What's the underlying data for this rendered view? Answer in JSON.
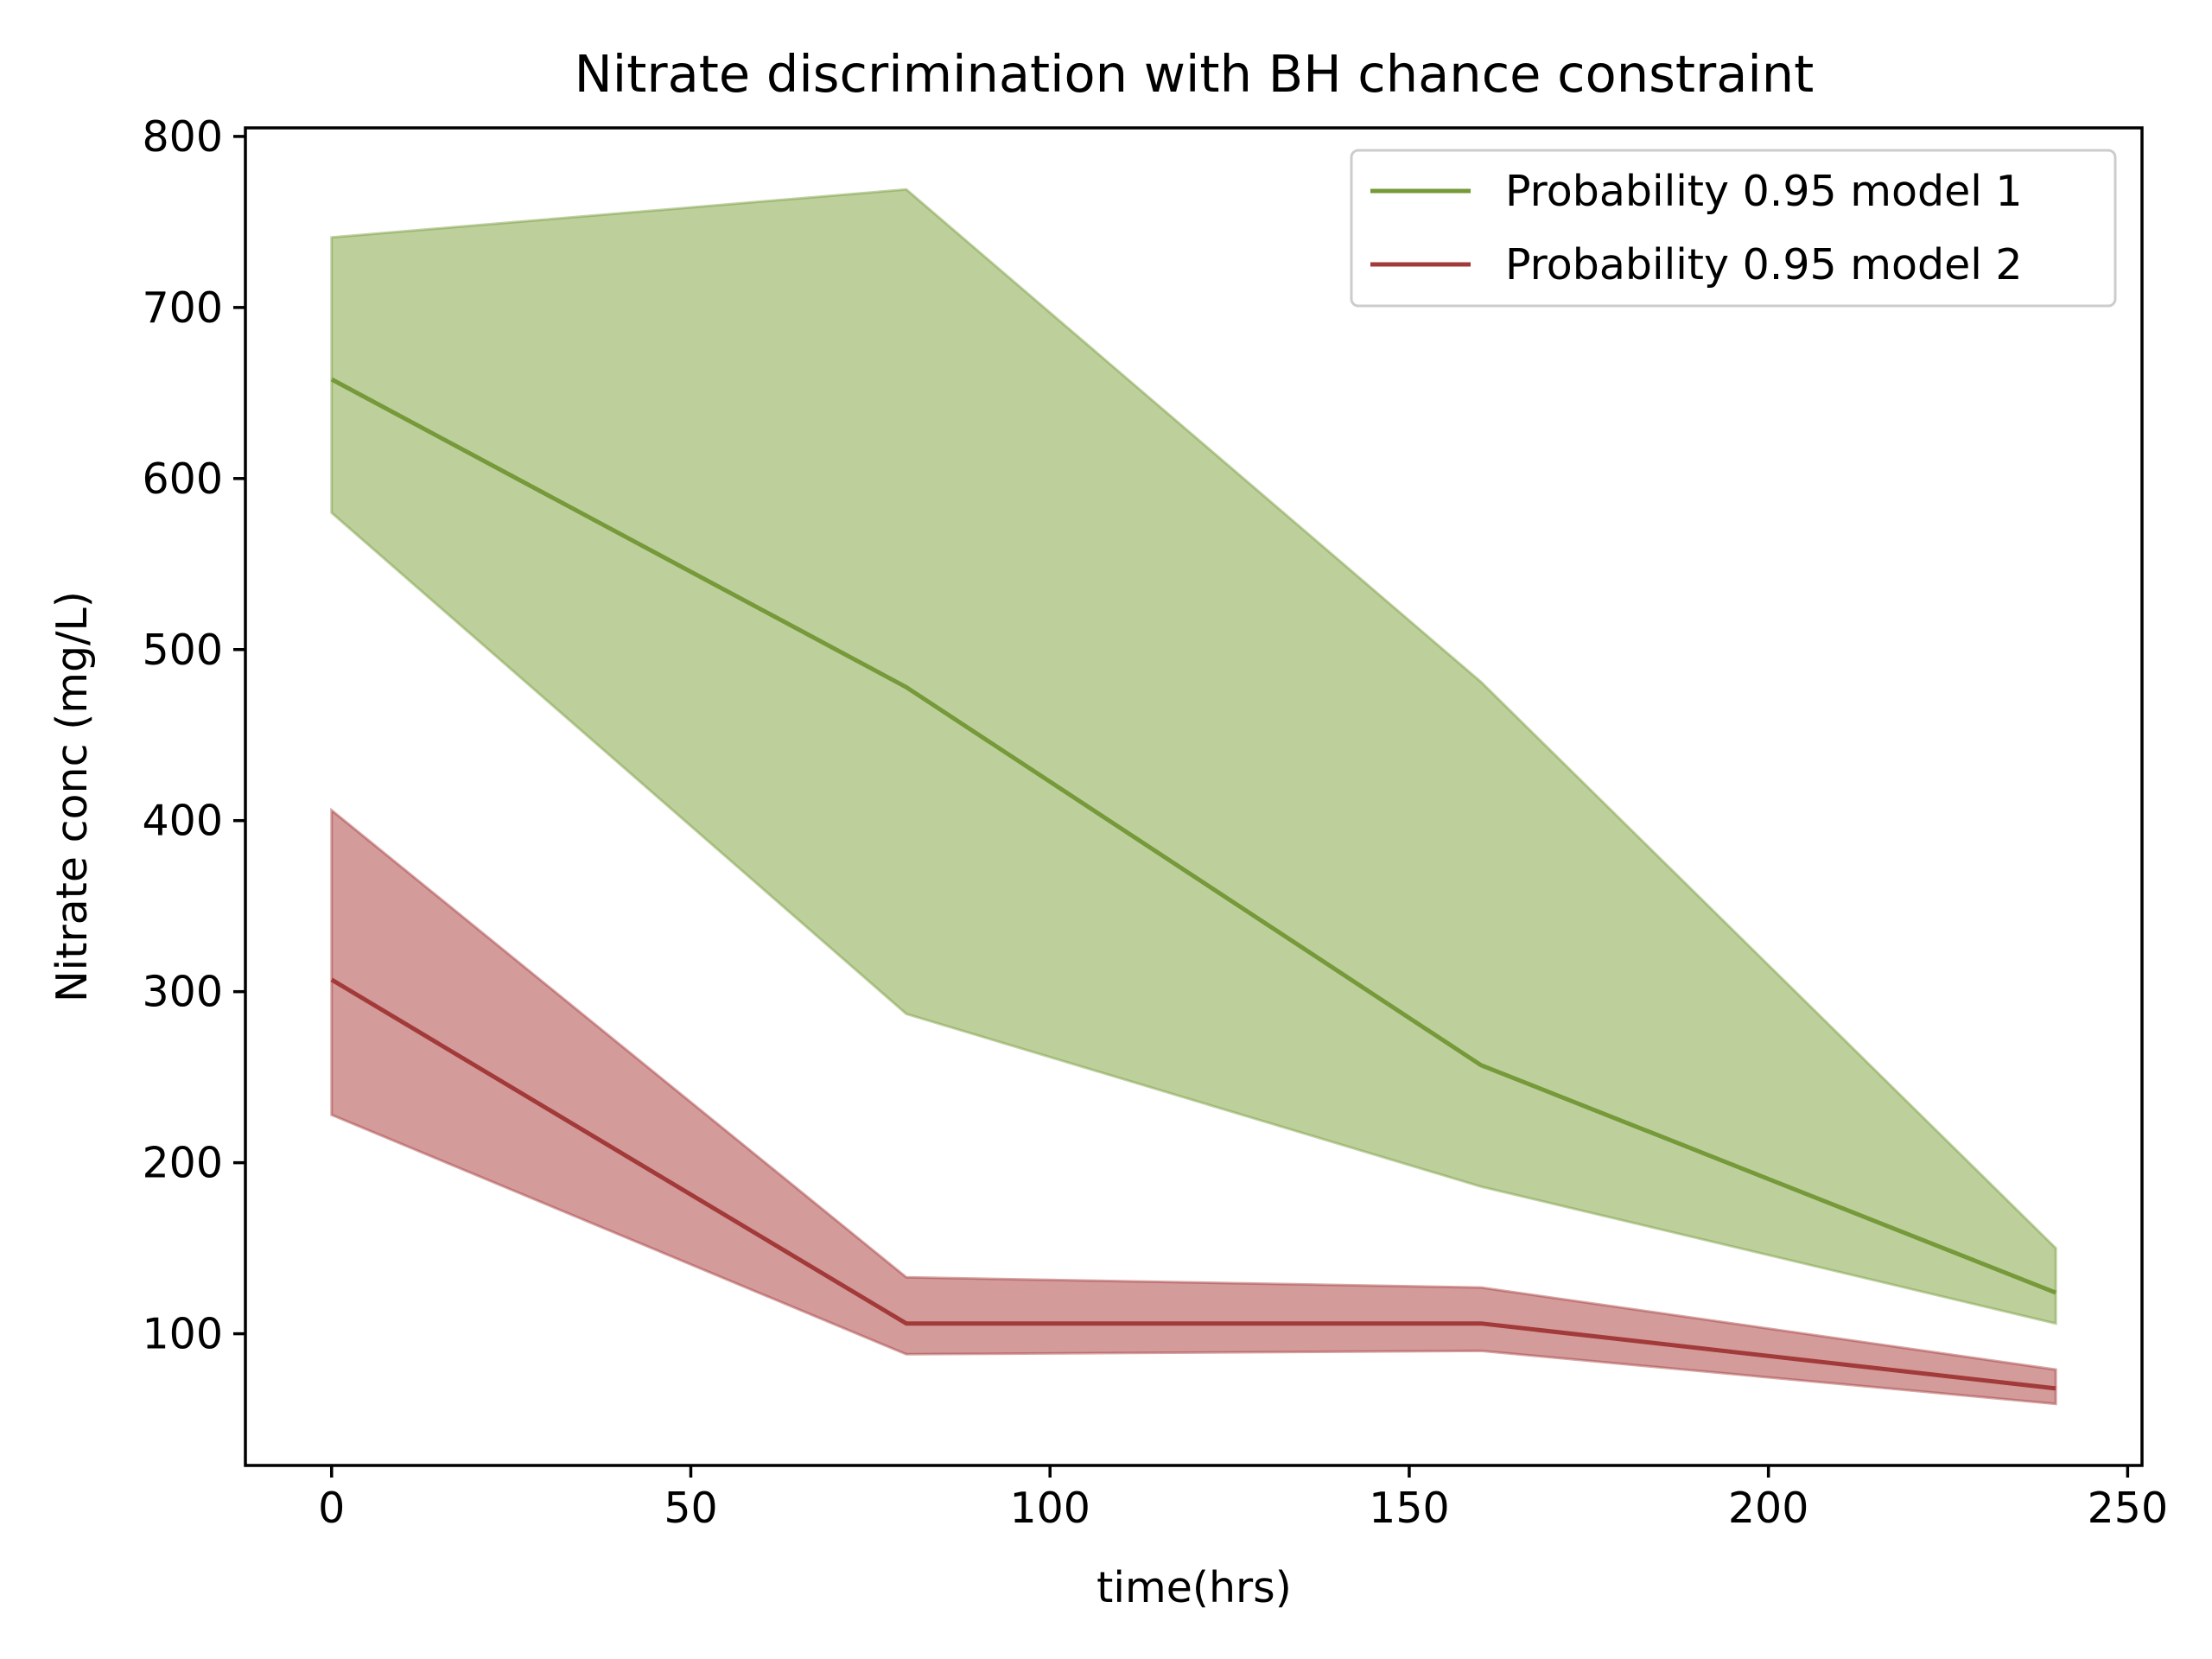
{
  "chart_data": {
    "type": "area",
    "title": "Nitrate discrimination with BH chance constraint",
    "xlabel": "time(hrs)",
    "ylabel": "Nitrate conc (mg/L)",
    "xlim": [
      -12,
      252
    ],
    "ylim": [
      23,
      805
    ],
    "xticks": [
      0,
      50,
      100,
      150,
      200,
      250
    ],
    "yticks": [
      100,
      200,
      300,
      400,
      500,
      600,
      700,
      800
    ],
    "grid": false,
    "legend_position": "top-right",
    "x": [
      0,
      80,
      160,
      240
    ],
    "series": [
      {
        "name": "Probability 0.95 model 1",
        "color": "#76993a",
        "fill_color": "#bdd09c",
        "values": [
          658,
          478,
          257,
          124
        ],
        "upper": [
          741,
          769,
          481,
          150
        ],
        "lower": [
          580,
          287,
          186,
          106
        ]
      },
      {
        "name": "Probability 0.95 model 2",
        "color": "#a33a3a",
        "fill_color": "#d49b9b",
        "values": [
          307,
          106,
          106,
          68
        ],
        "upper": [
          406,
          133,
          127,
          79
        ],
        "lower": [
          228,
          88,
          90,
          59
        ]
      }
    ]
  }
}
